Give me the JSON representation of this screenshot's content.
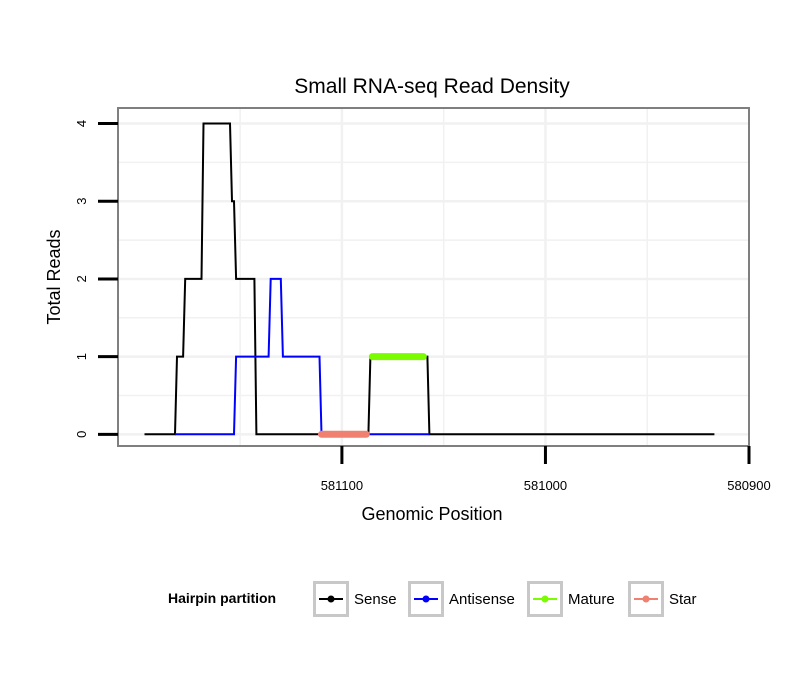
{
  "chart_data": {
    "type": "line",
    "title": "Small RNA-seq Read Density",
    "xlabel": "Genomic Position",
    "ylabel": "Total Reads",
    "xlim": [
      581210,
      580900
    ],
    "x_reversed": true,
    "ylim": [
      -0.15,
      4.2
    ],
    "x_ticks": [
      581100,
      581000,
      580900
    ],
    "x_tick_labels": [
      "581100",
      "581000",
      "580900"
    ],
    "y_ticks": [
      0,
      1,
      2,
      3,
      4
    ],
    "y_tick_labels": [
      "0",
      "1",
      "2",
      "3",
      "4"
    ],
    "grid": true,
    "legend": {
      "title": "Hairpin partition",
      "placement": "bottom",
      "entries": [
        "Sense",
        "Antisense",
        "Mature",
        "Star"
      ]
    },
    "series": [
      {
        "name": "Sense",
        "color": "#000000",
        "points": [
          [
            581197,
            0
          ],
          [
            581182,
            0
          ],
          [
            581181,
            1
          ],
          [
            581178,
            1
          ],
          [
            581177,
            2
          ],
          [
            581169,
            2
          ],
          [
            581168,
            4
          ],
          [
            581155,
            4
          ],
          [
            581154,
            3
          ],
          [
            581153,
            3
          ],
          [
            581152,
            2
          ],
          [
            581143,
            2
          ],
          [
            581142,
            0
          ],
          [
            581115,
            0
          ],
          [
            581113,
            0
          ],
          [
            581087,
            0
          ],
          [
            581086,
            1
          ],
          [
            581058,
            1
          ],
          [
            581057,
            0
          ],
          [
            580940,
            0
          ],
          [
            580917,
            0
          ]
        ]
      },
      {
        "name": "Antisense",
        "color": "#0000ff",
        "points": [
          [
            581182,
            0
          ],
          [
            581153,
            0
          ],
          [
            581152,
            1
          ],
          [
            581136,
            1
          ],
          [
            581135,
            2
          ],
          [
            581130,
            2
          ],
          [
            581129,
            1
          ],
          [
            581111,
            1
          ],
          [
            581110,
            0
          ],
          [
            581057,
            0
          ]
        ]
      },
      {
        "name": "Mature",
        "color": "#7cfc00",
        "points": [
          [
            581085,
            1
          ],
          [
            581060,
            1
          ]
        ]
      },
      {
        "name": "Star",
        "color": "#f08070",
        "points": [
          [
            581110,
            0
          ],
          [
            581088,
            0
          ]
        ]
      }
    ]
  }
}
